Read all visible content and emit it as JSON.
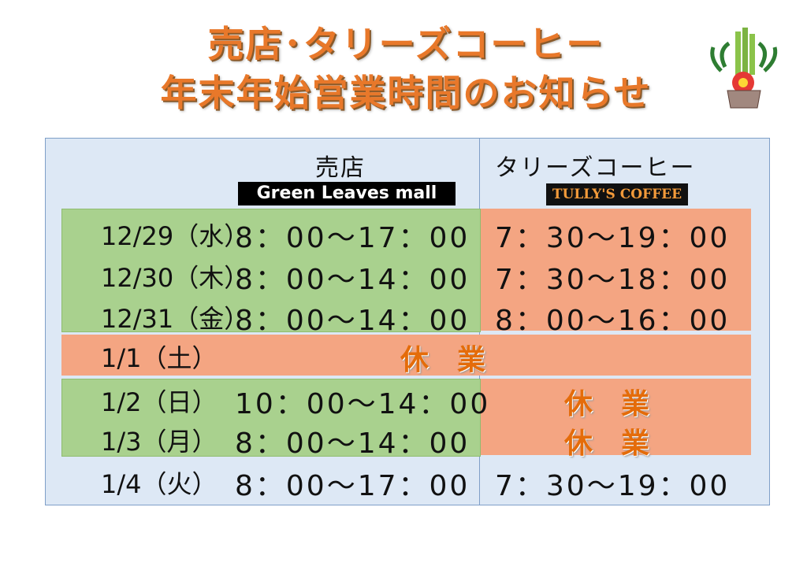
{
  "header": {
    "title_lines": [
      "売店･タリーズコーヒー",
      "年末年始営業時間のお知らせ"
    ]
  },
  "table": {
    "columns": [
      {
        "name": "売店",
        "brand": "Green Leaves mall"
      },
      {
        "name": "タリーズコーヒー",
        "brand": "TULLY'S COFFEE"
      }
    ],
    "rows": [
      [
        "12/29（水）",
        "8：00～17：00",
        "7：30～19：00"
      ],
      [
        "12/30（木）",
        "8：00～14：00",
        "7：30～18：00"
      ],
      [
        "12/31（金）",
        "8：00～14：00",
        "8：00～16：00"
      ],
      [
        "1/1（土）",
        "休　業"
      ],
      [
        "1/2（日）",
        "10：00～14：00",
        "休　業"
      ],
      [
        "1/3（月）",
        "8：00～14：00",
        "休　業"
      ],
      [
        "1/4（火）",
        "8：00～17：00",
        "7：30～19：00"
      ]
    ]
  }
}
